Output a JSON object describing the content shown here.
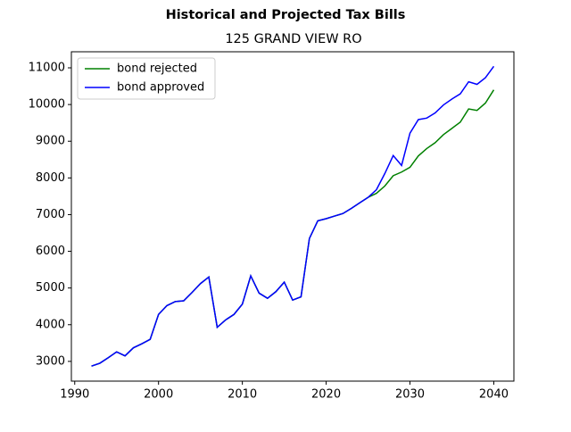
{
  "chart_data": {
    "type": "line",
    "title": "Historical and Projected Tax Bills",
    "subtitle": "125 GRAND VIEW RO",
    "x": [
      1992,
      1993,
      1994,
      1995,
      1996,
      1997,
      1998,
      1999,
      2000,
      2001,
      2002,
      2003,
      2004,
      2005,
      2006,
      2007,
      2008,
      2009,
      2010,
      2011,
      2012,
      2013,
      2014,
      2015,
      2016,
      2017,
      2018,
      2019,
      2020,
      2021,
      2022,
      2023,
      2024,
      2025,
      2026,
      2027,
      2028,
      2029,
      2030,
      2031,
      2032,
      2033,
      2034,
      2035,
      2036,
      2037,
      2038,
      2039,
      2040
    ],
    "series": [
      {
        "name": "bond rejected",
        "color": "#008000",
        "values": [
          2870,
          2950,
          3100,
          3260,
          3150,
          3370,
          3480,
          3600,
          4280,
          4520,
          4630,
          4650,
          4880,
          5120,
          5300,
          3930,
          4130,
          4280,
          4560,
          5330,
          4860,
          4720,
          4900,
          5160,
          4670,
          4760,
          6350,
          6830,
          6890,
          6960,
          7030,
          7170,
          7320,
          7470,
          7580,
          7780,
          8060,
          8160,
          8290,
          8600,
          8800,
          8960,
          9180,
          9350,
          9520,
          9880,
          9840,
          10040,
          10400
        ]
      },
      {
        "name": "bond approved",
        "color": "#0000ff",
        "values": [
          2870,
          2950,
          3100,
          3260,
          3150,
          3370,
          3480,
          3600,
          4280,
          4520,
          4630,
          4650,
          4880,
          5120,
          5300,
          3930,
          4130,
          4280,
          4560,
          5330,
          4860,
          4720,
          4900,
          5160,
          4670,
          4760,
          6350,
          6830,
          6890,
          6960,
          7030,
          7170,
          7320,
          7470,
          7680,
          8120,
          8610,
          8340,
          9220,
          9590,
          9630,
          9770,
          9990,
          10150,
          10290,
          10620,
          10550,
          10730,
          11040
        ]
      }
    ],
    "xlim": [
      1989.6,
      2042.4
    ],
    "xticks": [
      1990,
      2000,
      2010,
      2020,
      2030,
      2040
    ],
    "ylim": [
      2462,
      11438
    ],
    "yticks": [
      3000,
      4000,
      5000,
      6000,
      7000,
      8000,
      9000,
      10000,
      11000
    ],
    "legend": "upper left"
  }
}
